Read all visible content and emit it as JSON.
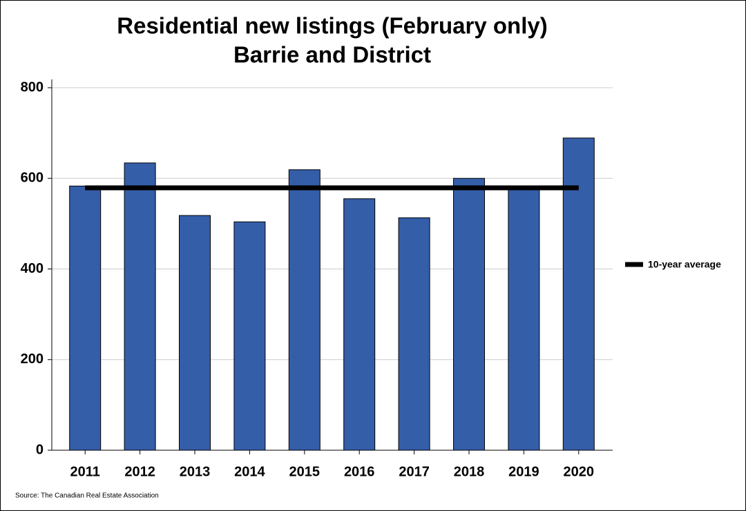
{
  "chart_data": {
    "type": "bar",
    "title": [
      "Residential new listings (February only)",
      "Barrie and District"
    ],
    "categories": [
      "2011",
      "2012",
      "2013",
      "2014",
      "2015",
      "2016",
      "2017",
      "2018",
      "2019",
      "2020"
    ],
    "series": [
      {
        "color": "#355ea9",
        "values": [
          583,
          634,
          518,
          504,
          619,
          555,
          513,
          600,
          579,
          689
        ]
      }
    ],
    "average_line": {
      "name": "10-year average",
      "value": 579,
      "color": "#000000"
    },
    "ylim": [
      0,
      800
    ],
    "yticks": [
      0,
      200,
      400,
      600,
      800
    ],
    "grid": true,
    "legend": "right",
    "source": "Source: The Canadian Real Estate Association"
  }
}
